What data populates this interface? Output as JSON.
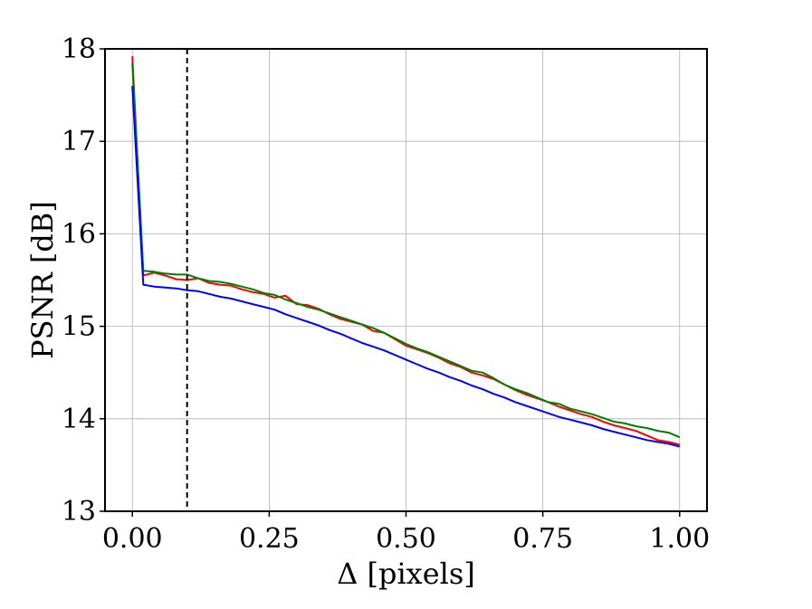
{
  "chart_data": {
    "type": "line",
    "title": "",
    "xlabel": "Δ [pixels]",
    "ylabel": "PSNR [dB]",
    "xlim": [
      -0.05,
      1.05
    ],
    "ylim": [
      13,
      18
    ],
    "grid": true,
    "x_ticks": [
      0.0,
      0.25,
      0.5,
      0.75,
      1.0
    ],
    "x_tick_labels": [
      "0.00",
      "0.25",
      "0.50",
      "0.75",
      "1.00"
    ],
    "y_ticks": [
      13,
      14,
      15,
      16,
      17,
      18
    ],
    "y_tick_labels": [
      "13",
      "14",
      "15",
      "16",
      "17",
      "18"
    ],
    "vertical_line": {
      "x": 0.1,
      "style": "dashed",
      "color": "#000000"
    },
    "series": [
      {
        "color": "#ff0000",
        "x": [
          0.0,
          0.02,
          0.04,
          0.06,
          0.08,
          0.1,
          0.12,
          0.14,
          0.16,
          0.18,
          0.2,
          0.22,
          0.24,
          0.26,
          0.28,
          0.3,
          0.32,
          0.34,
          0.36,
          0.38,
          0.4,
          0.42,
          0.44,
          0.46,
          0.48,
          0.5,
          0.52,
          0.54,
          0.56,
          0.58,
          0.6,
          0.62,
          0.64,
          0.66,
          0.68,
          0.7,
          0.72,
          0.74,
          0.76,
          0.78,
          0.8,
          0.82,
          0.84,
          0.86,
          0.88,
          0.9,
          0.92,
          0.94,
          0.96,
          0.98,
          1.0
        ],
        "values": [
          17.92,
          15.55,
          15.58,
          15.55,
          15.51,
          15.5,
          15.52,
          15.47,
          15.45,
          15.44,
          15.4,
          15.37,
          15.35,
          15.31,
          15.33,
          15.24,
          15.23,
          15.19,
          15.13,
          15.08,
          15.05,
          15.02,
          14.95,
          14.93,
          14.86,
          14.79,
          14.75,
          14.71,
          14.66,
          14.6,
          14.56,
          14.5,
          14.47,
          14.43,
          14.37,
          14.31,
          14.26,
          14.22,
          14.18,
          14.13,
          14.09,
          14.05,
          14.02,
          13.97,
          13.93,
          13.9,
          13.87,
          13.82,
          13.77,
          13.75,
          13.72
        ]
      },
      {
        "color": "#008000",
        "x": [
          0.0,
          0.02,
          0.04,
          0.06,
          0.08,
          0.1,
          0.12,
          0.14,
          0.16,
          0.18,
          0.2,
          0.22,
          0.24,
          0.26,
          0.28,
          0.3,
          0.32,
          0.34,
          0.36,
          0.38,
          0.4,
          0.42,
          0.44,
          0.46,
          0.48,
          0.5,
          0.52,
          0.54,
          0.56,
          0.58,
          0.6,
          0.62,
          0.64,
          0.66,
          0.68,
          0.7,
          0.72,
          0.74,
          0.76,
          0.78,
          0.8,
          0.82,
          0.84,
          0.86,
          0.88,
          0.9,
          0.92,
          0.94,
          0.96,
          0.98,
          1.0
        ],
        "values": [
          17.85,
          15.6,
          15.59,
          15.57,
          15.56,
          15.56,
          15.52,
          15.49,
          15.48,
          15.46,
          15.43,
          15.4,
          15.36,
          15.34,
          15.29,
          15.25,
          15.21,
          15.18,
          15.14,
          15.1,
          15.06,
          15.02,
          14.98,
          14.93,
          14.87,
          14.81,
          14.76,
          14.72,
          14.67,
          14.62,
          14.57,
          14.52,
          14.5,
          14.44,
          14.37,
          14.32,
          14.28,
          14.23,
          14.18,
          14.16,
          14.11,
          14.08,
          14.05,
          14.01,
          13.97,
          13.95,
          13.92,
          13.9,
          13.87,
          13.85,
          13.8
        ]
      },
      {
        "color": "#0000ff",
        "x": [
          0.0,
          0.02,
          0.04,
          0.06,
          0.08,
          0.1,
          0.12,
          0.14,
          0.16,
          0.18,
          0.2,
          0.22,
          0.24,
          0.26,
          0.28,
          0.3,
          0.32,
          0.34,
          0.36,
          0.38,
          0.4,
          0.42,
          0.44,
          0.46,
          0.48,
          0.5,
          0.52,
          0.54,
          0.56,
          0.58,
          0.6,
          0.62,
          0.64,
          0.66,
          0.68,
          0.7,
          0.72,
          0.74,
          0.76,
          0.78,
          0.8,
          0.82,
          0.84,
          0.86,
          0.88,
          0.9,
          0.92,
          0.94,
          0.96,
          0.98,
          1.0
        ],
        "values": [
          17.6,
          15.45,
          15.43,
          15.42,
          15.41,
          15.39,
          15.38,
          15.35,
          15.32,
          15.3,
          15.27,
          15.24,
          15.21,
          15.18,
          15.13,
          15.09,
          15.05,
          15.01,
          14.96,
          14.92,
          14.87,
          14.82,
          14.78,
          14.74,
          14.69,
          14.64,
          14.59,
          14.54,
          14.5,
          14.45,
          14.41,
          14.36,
          14.32,
          14.27,
          14.23,
          14.18,
          14.14,
          14.1,
          14.06,
          14.02,
          13.99,
          13.96,
          13.93,
          13.89,
          13.86,
          13.83,
          13.8,
          13.77,
          13.75,
          13.73,
          13.7
        ]
      }
    ]
  }
}
